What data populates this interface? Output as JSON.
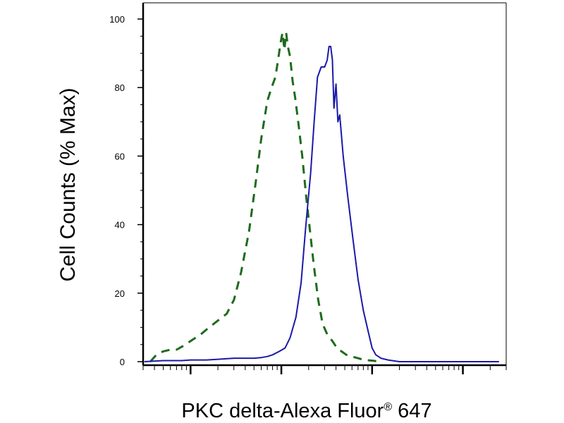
{
  "chart_data": {
    "type": "line",
    "title": "",
    "xlabel": "PKC delta-Alexa Fluor",
    "xlabel_superscript": "®",
    "xlabel_suffix": " 647",
    "ylabel": "Cell Counts (% Max)",
    "x_scale": "log",
    "xlim": [
      0.3,
      3000
    ],
    "ylim": [
      0,
      100
    ],
    "y_ticks": [
      0,
      20,
      40,
      60,
      80,
      100
    ],
    "y_tick_labels": [
      "0",
      "20",
      "40",
      "60",
      "80",
      "100"
    ],
    "x_major_ticks": [
      1,
      10,
      100,
      1000
    ],
    "x_tick_labels_shown": false,
    "grid": false,
    "legend": "none",
    "series": [
      {
        "style": "dashed",
        "color": "#1e6b1e",
        "x": [
          0.36,
          0.42,
          0.5,
          0.6,
          0.7,
          0.82,
          1.0,
          1.3,
          1.6,
          2.0,
          2.5,
          3.0,
          3.6,
          4.4,
          5.2,
          6.0,
          7.0,
          7.8,
          8.6,
          9.2,
          9.8,
          10.3,
          10.8,
          11.3,
          11.8,
          12.5,
          13.3,
          14.2,
          15.5,
          17.0,
          18.8,
          20.7,
          22.8,
          25.5,
          28.5,
          32.0,
          36.5,
          41.0,
          46.0,
          52.0,
          60.0,
          70.0,
          82.0,
          100.0,
          125.0
        ],
        "y": [
          0,
          2,
          3,
          3.5,
          3.5,
          4.5,
          6,
          8,
          10,
          12,
          14,
          18,
          26,
          38,
          52,
          65,
          76,
          80,
          83,
          88,
          93,
          96,
          91,
          96,
          92,
          89,
          82,
          77,
          69,
          60,
          48,
          38,
          28,
          18,
          11,
          8,
          6,
          4,
          3,
          2,
          1.5,
          1,
          0.5,
          0.3,
          0
        ]
      },
      {
        "style": "solid",
        "color": "#1a1aa8",
        "x": [
          0.31,
          0.5,
          0.8,
          1.0,
          1.5,
          2.0,
          3.0,
          4.0,
          5.0,
          6.0,
          7.0,
          8.0,
          9.5,
          11.0,
          12.5,
          14.5,
          16.5,
          18.5,
          21.0,
          23.0,
          25.0,
          27.5,
          30.0,
          32.0,
          33.5,
          35.0,
          36.5,
          38.0,
          40.0,
          42.0,
          44.0,
          48.0,
          54.0,
          62.0,
          70.0,
          80.0,
          92.0,
          100.0,
          110.0,
          125.0,
          150.0,
          200.0,
          300.0,
          500.0,
          800.0,
          1200.0,
          1800.0,
          2500.0
        ],
        "y": [
          0,
          0.3,
          0.3,
          0.5,
          0.5,
          0.7,
          1,
          1,
          1,
          1.2,
          1.5,
          2,
          3,
          4,
          7,
          13,
          23,
          39,
          55,
          70,
          83,
          86,
          86,
          88,
          92,
          92,
          88,
          74,
          81,
          70,
          72,
          60,
          48,
          35,
          24,
          15,
          8,
          4,
          2,
          1,
          0.5,
          0,
          0,
          0,
          0,
          0,
          0,
          0
        ]
      }
    ]
  }
}
